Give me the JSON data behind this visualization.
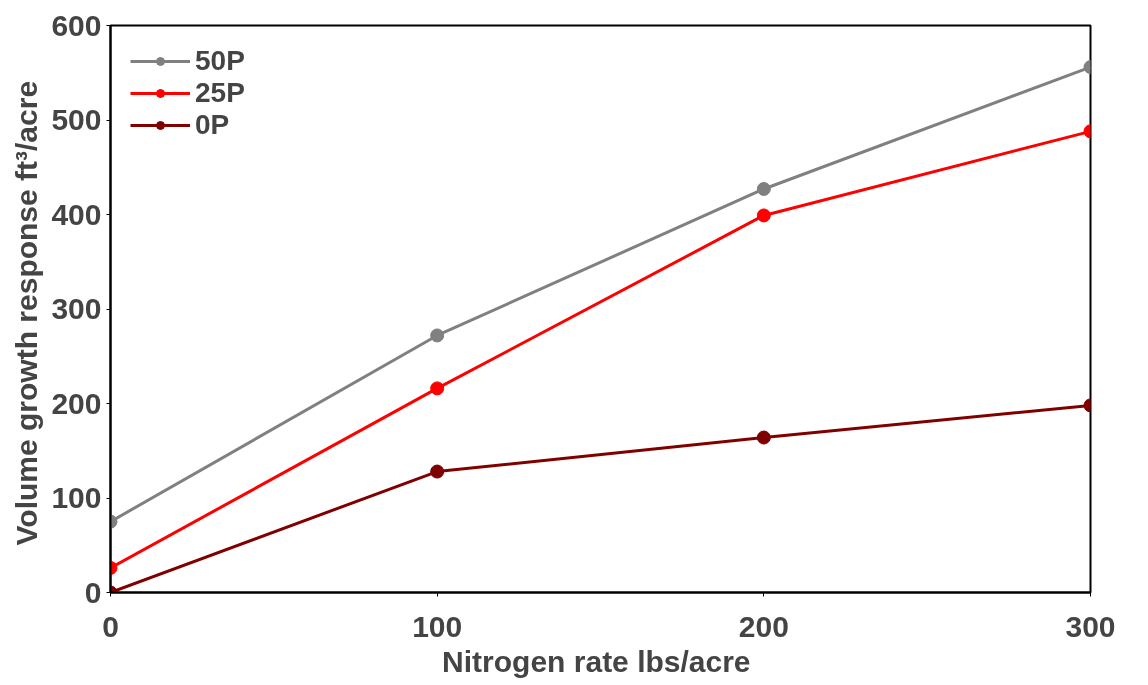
{
  "chart_data": {
    "type": "line",
    "xlabel": "Nitrogen rate  lbs/acre",
    "ylabel": "Volume growth response  ft³/acre",
    "x": [
      0,
      100,
      200,
      300
    ],
    "series": [
      {
        "name": "50P",
        "color": "#808080",
        "values": [
          75,
          272,
          427,
          556
        ]
      },
      {
        "name": "25P",
        "color": "#ff0000",
        "values": [
          26,
          216,
          399,
          488
        ]
      },
      {
        "name": "0P",
        "color": "#800000",
        "values": [
          0,
          128,
          164,
          198
        ]
      }
    ],
    "xlim": [
      0,
      300
    ],
    "ylim": [
      0,
      600
    ],
    "xticks": [
      0,
      100,
      200,
      300
    ],
    "yticks": [
      0,
      100,
      200,
      300,
      400,
      500,
      600
    ],
    "grid": false,
    "legend": "top left",
    "marker": "circle",
    "line_style": "solid"
  }
}
